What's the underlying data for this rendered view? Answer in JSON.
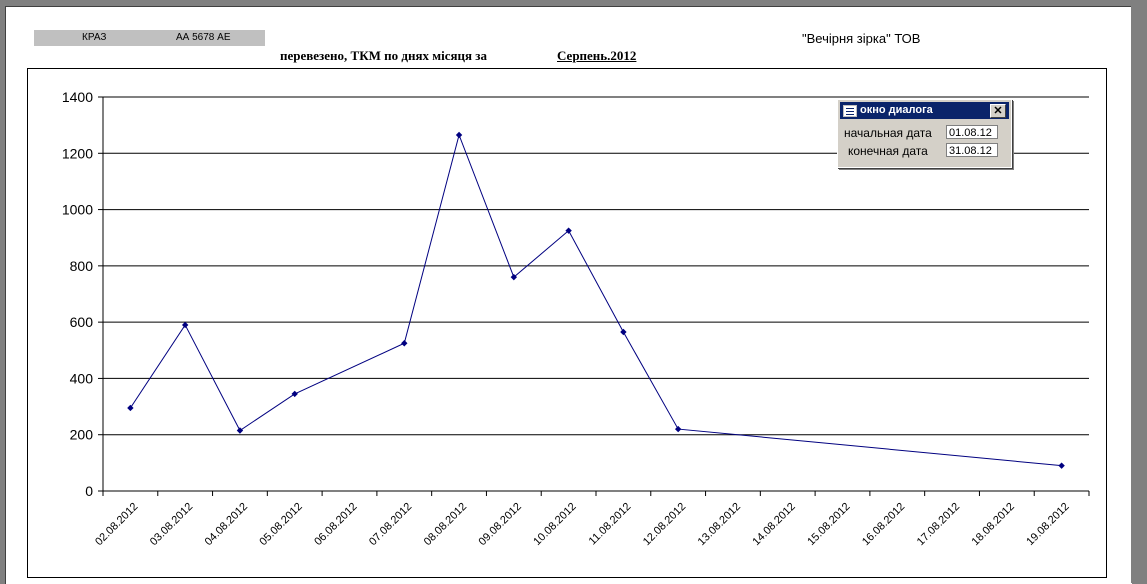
{
  "header": {
    "vehicle_model": "КРАЗ",
    "vehicle_plate": "АА 5678 АЕ",
    "company": "\"Вечірня зірка\" ТОВ",
    "title": "перевезено, ТКМ по днях місяця за",
    "period": "Серпень.2012"
  },
  "dialog": {
    "title": "окно диалога",
    "close_glyph": "✕",
    "start_label": "начальная дата",
    "start_value": "01.08.12",
    "end_label": "конечная дата",
    "end_value": "31.08.12"
  },
  "colors": {
    "line": "#000080",
    "grid": "#000000"
  },
  "chart_data": {
    "type": "line",
    "categories": [
      "02.08.2012",
      "03.08.2012",
      "04.08.2012",
      "05.08.2012",
      "06.08.2012",
      "07.08.2012",
      "08.08.2012",
      "09.08.2012",
      "10.08.2012",
      "11.08.2012",
      "12.08.2012",
      "13.08.2012",
      "14.08.2012",
      "15.08.2012",
      "16.08.2012",
      "17.08.2012",
      "18.08.2012",
      "19.08.2012"
    ],
    "points": [
      {
        "category": "02.08.2012",
        "value": 295
      },
      {
        "category": "03.08.2012",
        "value": 590
      },
      {
        "category": "04.08.2012",
        "value": 215
      },
      {
        "category": "05.08.2012",
        "value": 345
      },
      {
        "category": "07.08.2012",
        "value": 525
      },
      {
        "category": "08.08.2012",
        "value": 1265
      },
      {
        "category": "09.08.2012",
        "value": 760
      },
      {
        "category": "10.08.2012",
        "value": 925
      },
      {
        "category": "11.08.2012",
        "value": 565
      },
      {
        "category": "12.08.2012",
        "value": 220
      },
      {
        "category": "19.08.2012",
        "value": 90
      }
    ],
    "yticks": [
      "0",
      "200",
      "400",
      "600",
      "800",
      "1000",
      "1200",
      "1400"
    ],
    "ylim": [
      0,
      1400
    ],
    "grid": true,
    "legend": "none"
  }
}
